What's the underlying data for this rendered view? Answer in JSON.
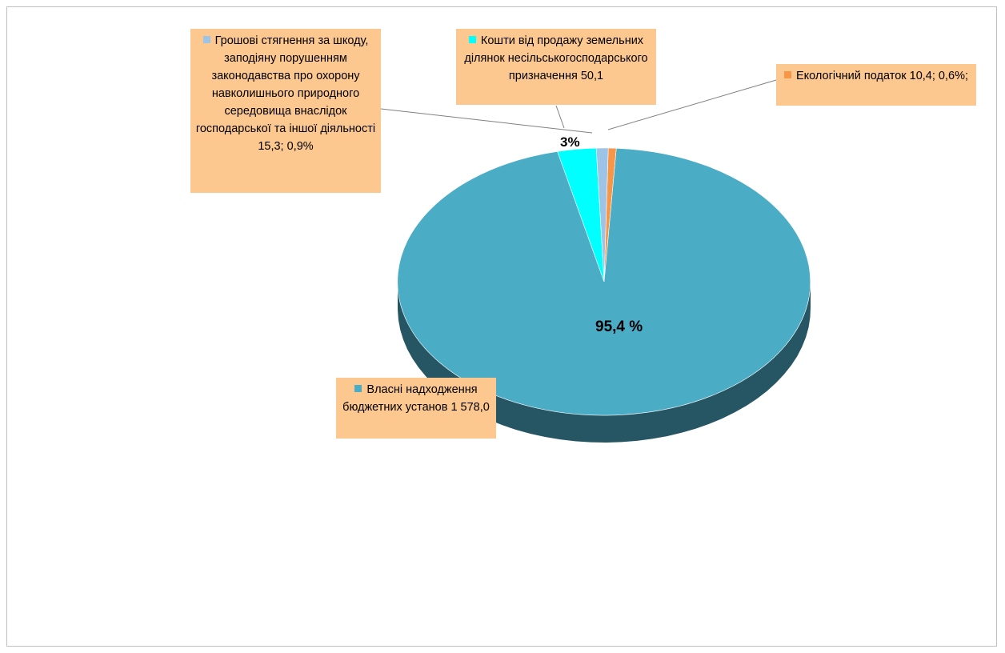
{
  "chart_data": {
    "type": "pie",
    "title": "",
    "slices": [
      {
        "label": "Власні надходження бюджетних установ",
        "value": 1578.0,
        "value_text": "1 578,0",
        "percent_text": "95,4 %",
        "color": "#4bacc6"
      },
      {
        "label": "Грошові стягнення за шкоду, заподіяну порушенням законодавства про охорону навколишнього природного середовища внаслідок господарської та іншої діяльності",
        "value": 15.3,
        "value_text": "15,3;",
        "percent_text": "0,9%",
        "color": "#9dc3e6"
      },
      {
        "label": "Кошти від продажу земельних ділянок несільськогосподарського призначення",
        "value": 50.1,
        "value_text": "50,1",
        "percent_text": "3%",
        "color": "#00ffff"
      },
      {
        "label": "Екологічний податок",
        "value": 10.4,
        "value_text": "10,4;",
        "percent_text": "0,6%;",
        "color": "#f79646"
      }
    ],
    "labels_text": {
      "grants": "Грошові стягнення за шкоду, заподіяну порушенням законодавства про охорону навколишнього природного середовища внаслідок господарської та іншої діяльності 15,3; 0,9%",
      "land": "Кошти від продажу земельних ділянок несільськогосподарського призначення 50,1",
      "eco": "Екологічний податок 10,4; 0,6%;",
      "own": "Власні надходження бюджетних установ 1 578,0"
    }
  }
}
